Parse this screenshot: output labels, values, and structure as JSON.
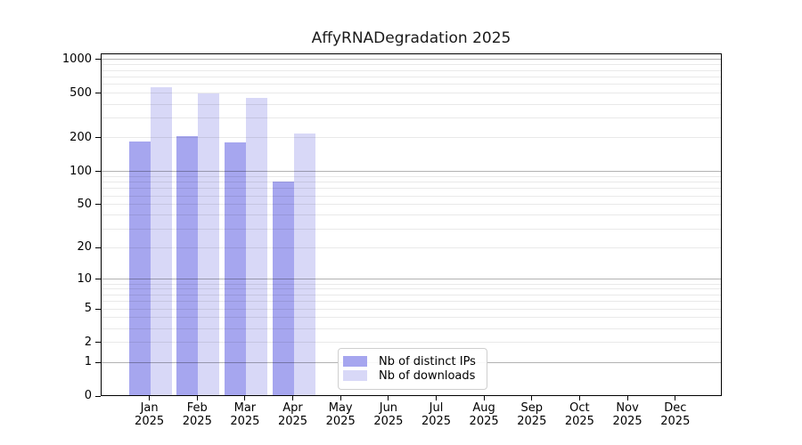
{
  "title": "AffyRNADegradation 2025",
  "legend": {
    "items": [
      {
        "label": "Nb of distinct IPs",
        "color": "#a6a6ef"
      },
      {
        "label": "Nb of downloads",
        "color": "#d8d8f7"
      }
    ]
  },
  "chart_data": {
    "type": "bar",
    "title": "AffyRNADegradation 2025",
    "xlabel": "",
    "ylabel": "",
    "y_scale": "log1p",
    "categories": [
      "Jan 2025",
      "Feb 2025",
      "Mar 2025",
      "Apr 2025",
      "May 2025",
      "Jun 2025",
      "Jul 2025",
      "Aug 2025",
      "Sep 2025",
      "Oct 2025",
      "Nov 2025",
      "Dec 2025"
    ],
    "series": [
      {
        "name": "Nb of distinct IPs",
        "color": "#a6a6ef",
        "values": [
          183,
          205,
          180,
          79,
          0,
          0,
          0,
          0,
          0,
          0,
          0,
          0
        ]
      },
      {
        "name": "Nb of downloads",
        "color": "#d8d8f7",
        "values": [
          560,
          488,
          450,
          215,
          0,
          0,
          0,
          0,
          0,
          0,
          0,
          0
        ]
      }
    ],
    "y_ticks": [
      0,
      1,
      2,
      5,
      10,
      20,
      50,
      100,
      200,
      500,
      1000
    ],
    "ylim": [
      0,
      1150
    ],
    "grid": {
      "major": [
        1,
        10,
        100,
        1000
      ],
      "minor": [
        2,
        3,
        4,
        5,
        6,
        7,
        8,
        9,
        20,
        30,
        40,
        50,
        60,
        70,
        80,
        90,
        200,
        300,
        400,
        500,
        600,
        700,
        800,
        900
      ]
    },
    "grid_on": true,
    "legend_position": "lower center"
  }
}
